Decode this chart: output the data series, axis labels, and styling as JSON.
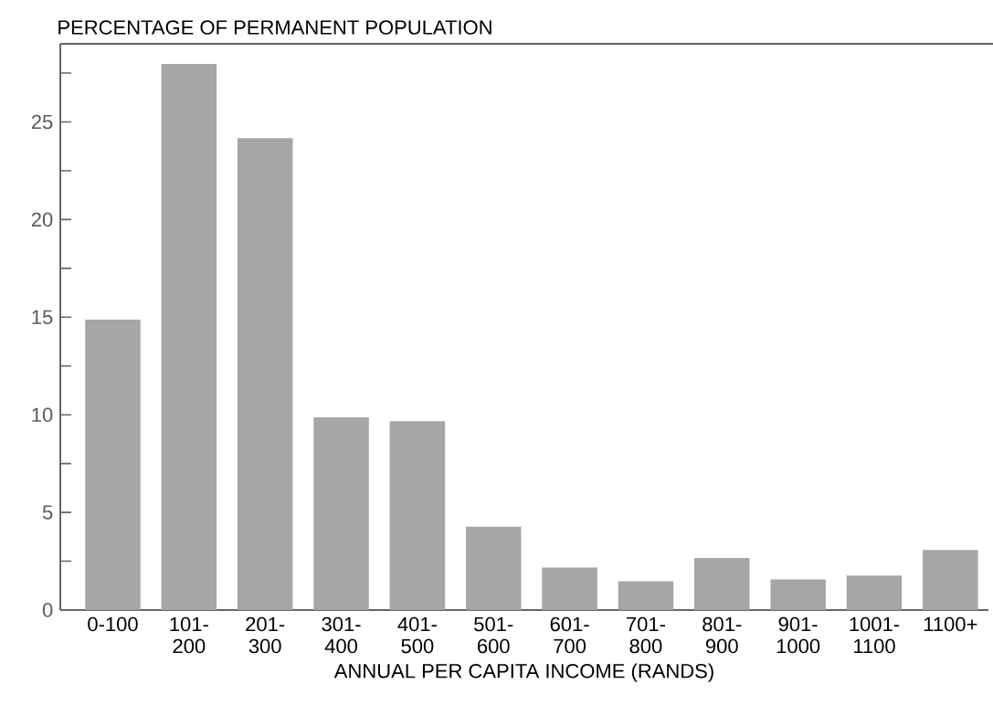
{
  "chart_data": {
    "type": "bar",
    "title": "PERCENTAGE OF PERMANENT POPULATION",
    "xlabel": "ANNUAL PER CAPITA INCOME (RANDS)",
    "categories": [
      "0-100",
      "101- 200",
      "201- 300",
      "301- 400",
      "401- 500",
      "501- 600",
      "601- 700",
      "701- 800",
      "801- 900",
      "901- 1000",
      "1001- 1100",
      "1100+"
    ],
    "values": [
      14.8,
      27.9,
      24.1,
      9.8,
      9.6,
      4.2,
      2.1,
      1.4,
      2.6,
      1.5,
      1.7,
      3.0
    ],
    "color": "#a6a6a6",
    "ylim": [
      0,
      29
    ],
    "yticks": [
      0,
      {
        "value": 2.5,
        "label": null
      },
      5,
      {
        "value": 7.5,
        "label": null
      },
      10,
      {
        "value": 12.5,
        "label": null
      },
      15,
      {
        "value": 17.5,
        "label": null
      },
      20,
      {
        "value": 22.5,
        "label": null
      },
      25,
      {
        "value": 27.5,
        "label": null
      }
    ]
  }
}
